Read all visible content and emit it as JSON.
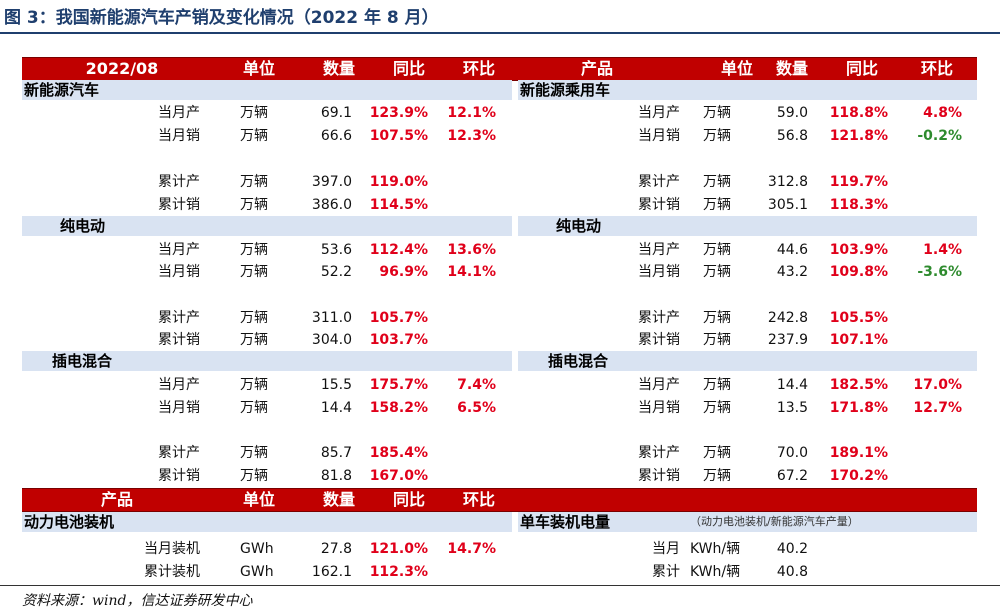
{
  "title": "图 3：我国新能源汽车产销及变化情况（2022 年 8 月）",
  "source": "资料来源：wind，信达证券研发中心",
  "colors": {
    "header_bg": "#c00000",
    "band_bg": "#d9e3f2",
    "positive": "#e0001a",
    "negative": "#2e8b2e",
    "title": "#1f3f6e"
  },
  "header_top": {
    "left": [
      "2022/08",
      "单位",
      "数量",
      "同比",
      "环比"
    ],
    "right": [
      "产品",
      "单位",
      "数量",
      "同比",
      "环比"
    ]
  },
  "header_bottom": {
    "left": [
      "产品",
      "单位",
      "数量",
      "同比",
      "环比"
    ]
  },
  "sections": {
    "left": [
      {
        "name": "新能源汽车",
        "rows": [
          {
            "label": "当月产",
            "unit": "万辆",
            "qty": "69.1",
            "yoy": "123.9%",
            "mom": "12.1%"
          },
          {
            "label": "当月销",
            "unit": "万辆",
            "qty": "66.6",
            "yoy": "107.5%",
            "mom": "12.3%"
          },
          {
            "label": "累计产",
            "unit": "万辆",
            "qty": "397.0",
            "yoy": "119.0%",
            "mom": ""
          },
          {
            "label": "累计销",
            "unit": "万辆",
            "qty": "386.0",
            "yoy": "114.5%",
            "mom": ""
          }
        ]
      },
      {
        "name": "纯电动",
        "rows": [
          {
            "label": "当月产",
            "unit": "万辆",
            "qty": "53.6",
            "yoy": "112.4%",
            "mom": "13.6%"
          },
          {
            "label": "当月销",
            "unit": "万辆",
            "qty": "52.2",
            "yoy": "96.9%",
            "mom": "14.1%"
          },
          {
            "label": "累计产",
            "unit": "万辆",
            "qty": "311.0",
            "yoy": "105.7%",
            "mom": ""
          },
          {
            "label": "累计销",
            "unit": "万辆",
            "qty": "304.0",
            "yoy": "103.7%",
            "mom": ""
          }
        ]
      },
      {
        "name": "插电混合",
        "rows": [
          {
            "label": "当月产",
            "unit": "万辆",
            "qty": "15.5",
            "yoy": "175.7%",
            "mom": "7.4%"
          },
          {
            "label": "当月销",
            "unit": "万辆",
            "qty": "14.4",
            "yoy": "158.2%",
            "mom": "6.5%"
          },
          {
            "label": "累计产",
            "unit": "万辆",
            "qty": "85.7",
            "yoy": "185.4%",
            "mom": ""
          },
          {
            "label": "累计销",
            "unit": "万辆",
            "qty": "81.8",
            "yoy": "167.0%",
            "mom": ""
          }
        ]
      }
    ],
    "right": [
      {
        "name": "新能源乘用车",
        "rows": [
          {
            "label": "当月产",
            "unit": "万辆",
            "qty": "59.0",
            "yoy": "118.8%",
            "mom": "4.8%"
          },
          {
            "label": "当月销",
            "unit": "万辆",
            "qty": "56.8",
            "yoy": "121.8%",
            "mom": "-0.2%"
          },
          {
            "label": "累计产",
            "unit": "万辆",
            "qty": "312.8",
            "yoy": "119.7%",
            "mom": ""
          },
          {
            "label": "累计销",
            "unit": "万辆",
            "qty": "305.1",
            "yoy": "118.3%",
            "mom": ""
          }
        ]
      },
      {
        "name": "纯电动",
        "rows": [
          {
            "label": "当月产",
            "unit": "万辆",
            "qty": "44.6",
            "yoy": "103.9%",
            "mom": "1.4%"
          },
          {
            "label": "当月销",
            "unit": "万辆",
            "qty": "43.2",
            "yoy": "109.8%",
            "mom": "-3.6%"
          },
          {
            "label": "累计产",
            "unit": "万辆",
            "qty": "242.8",
            "yoy": "105.5%",
            "mom": ""
          },
          {
            "label": "累计销",
            "unit": "万辆",
            "qty": "237.9",
            "yoy": "107.1%",
            "mom": ""
          }
        ]
      },
      {
        "name": "插电混合",
        "rows": [
          {
            "label": "当月产",
            "unit": "万辆",
            "qty": "14.4",
            "yoy": "182.5%",
            "mom": "17.0%"
          },
          {
            "label": "当月销",
            "unit": "万辆",
            "qty": "13.5",
            "yoy": "171.8%",
            "mom": "12.7%"
          },
          {
            "label": "累计产",
            "unit": "万辆",
            "qty": "70.0",
            "yoy": "189.1%",
            "mom": ""
          },
          {
            "label": "累计销",
            "unit": "万辆",
            "qty": "67.2",
            "yoy": "170.2%",
            "mom": ""
          }
        ]
      }
    ]
  },
  "battery": {
    "name": "动力电池装机",
    "rows": [
      {
        "label": "当月装机",
        "unit": "GWh",
        "qty": "27.8",
        "yoy": "121.0%",
        "mom": "14.7%"
      },
      {
        "label": "累计装机",
        "unit": "GWh",
        "qty": "162.1",
        "yoy": "112.3%",
        "mom": ""
      }
    ]
  },
  "per_vehicle": {
    "name": "单车装机电量",
    "note": "（动力电池装机/新能源汽车产量）",
    "rows": [
      {
        "label": "当月",
        "unit": "KWh/辆",
        "qty": "40.2"
      },
      {
        "label": "累计",
        "unit": "KWh/辆",
        "qty": "40.8"
      }
    ]
  }
}
